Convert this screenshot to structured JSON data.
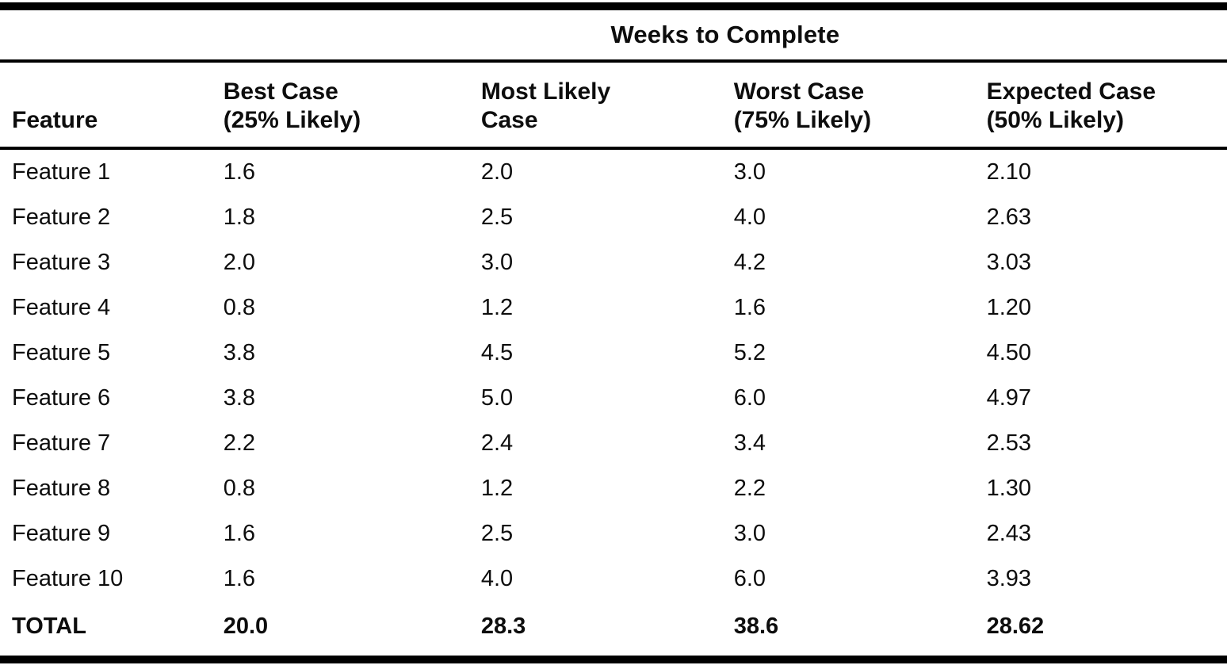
{
  "page": {
    "background_color": "#ffffff",
    "text_color": "#0d0d0d"
  },
  "table": {
    "spanning_header": "Weeks to Complete",
    "columns": [
      {
        "label": "Feature"
      },
      {
        "line1": "Best Case",
        "line2": "(25% Likely)"
      },
      {
        "line1": "Most Likely",
        "line2": "Case"
      },
      {
        "line1": "Worst Case",
        "line2": "(75% Likely)"
      },
      {
        "line1": "Expected Case",
        "line2": "(50% Likely)"
      }
    ],
    "rows": [
      {
        "feature": "Feature 1",
        "best": "1.6",
        "likely": "2.0",
        "worst": "3.0",
        "expected": "2.10"
      },
      {
        "feature": "Feature 2",
        "best": "1.8",
        "likely": "2.5",
        "worst": "4.0",
        "expected": "2.63"
      },
      {
        "feature": "Feature 3",
        "best": "2.0",
        "likely": "3.0",
        "worst": "4.2",
        "expected": "3.03"
      },
      {
        "feature": "Feature 4",
        "best": "0.8",
        "likely": "1.2",
        "worst": "1.6",
        "expected": "1.20"
      },
      {
        "feature": "Feature 5",
        "best": "3.8",
        "likely": "4.5",
        "worst": "5.2",
        "expected": "4.50"
      },
      {
        "feature": "Feature 6",
        "best": "3.8",
        "likely": "5.0",
        "worst": "6.0",
        "expected": "4.97"
      },
      {
        "feature": "Feature 7",
        "best": "2.2",
        "likely": "2.4",
        "worst": "3.4",
        "expected": "2.53"
      },
      {
        "feature": "Feature 8",
        "best": "0.8",
        "likely": "1.2",
        "worst": "2.2",
        "expected": "1.30"
      },
      {
        "feature": "Feature 9",
        "best": "1.6",
        "likely": "2.5",
        "worst": "3.0",
        "expected": "2.43"
      },
      {
        "feature": "Feature 10",
        "best": "1.6",
        "likely": "4.0",
        "worst": "6.0",
        "expected": "3.93"
      }
    ],
    "total": {
      "label": "TOTAL",
      "best": "20.0",
      "likely": "28.3",
      "worst": "38.6",
      "expected": "28.62"
    }
  }
}
